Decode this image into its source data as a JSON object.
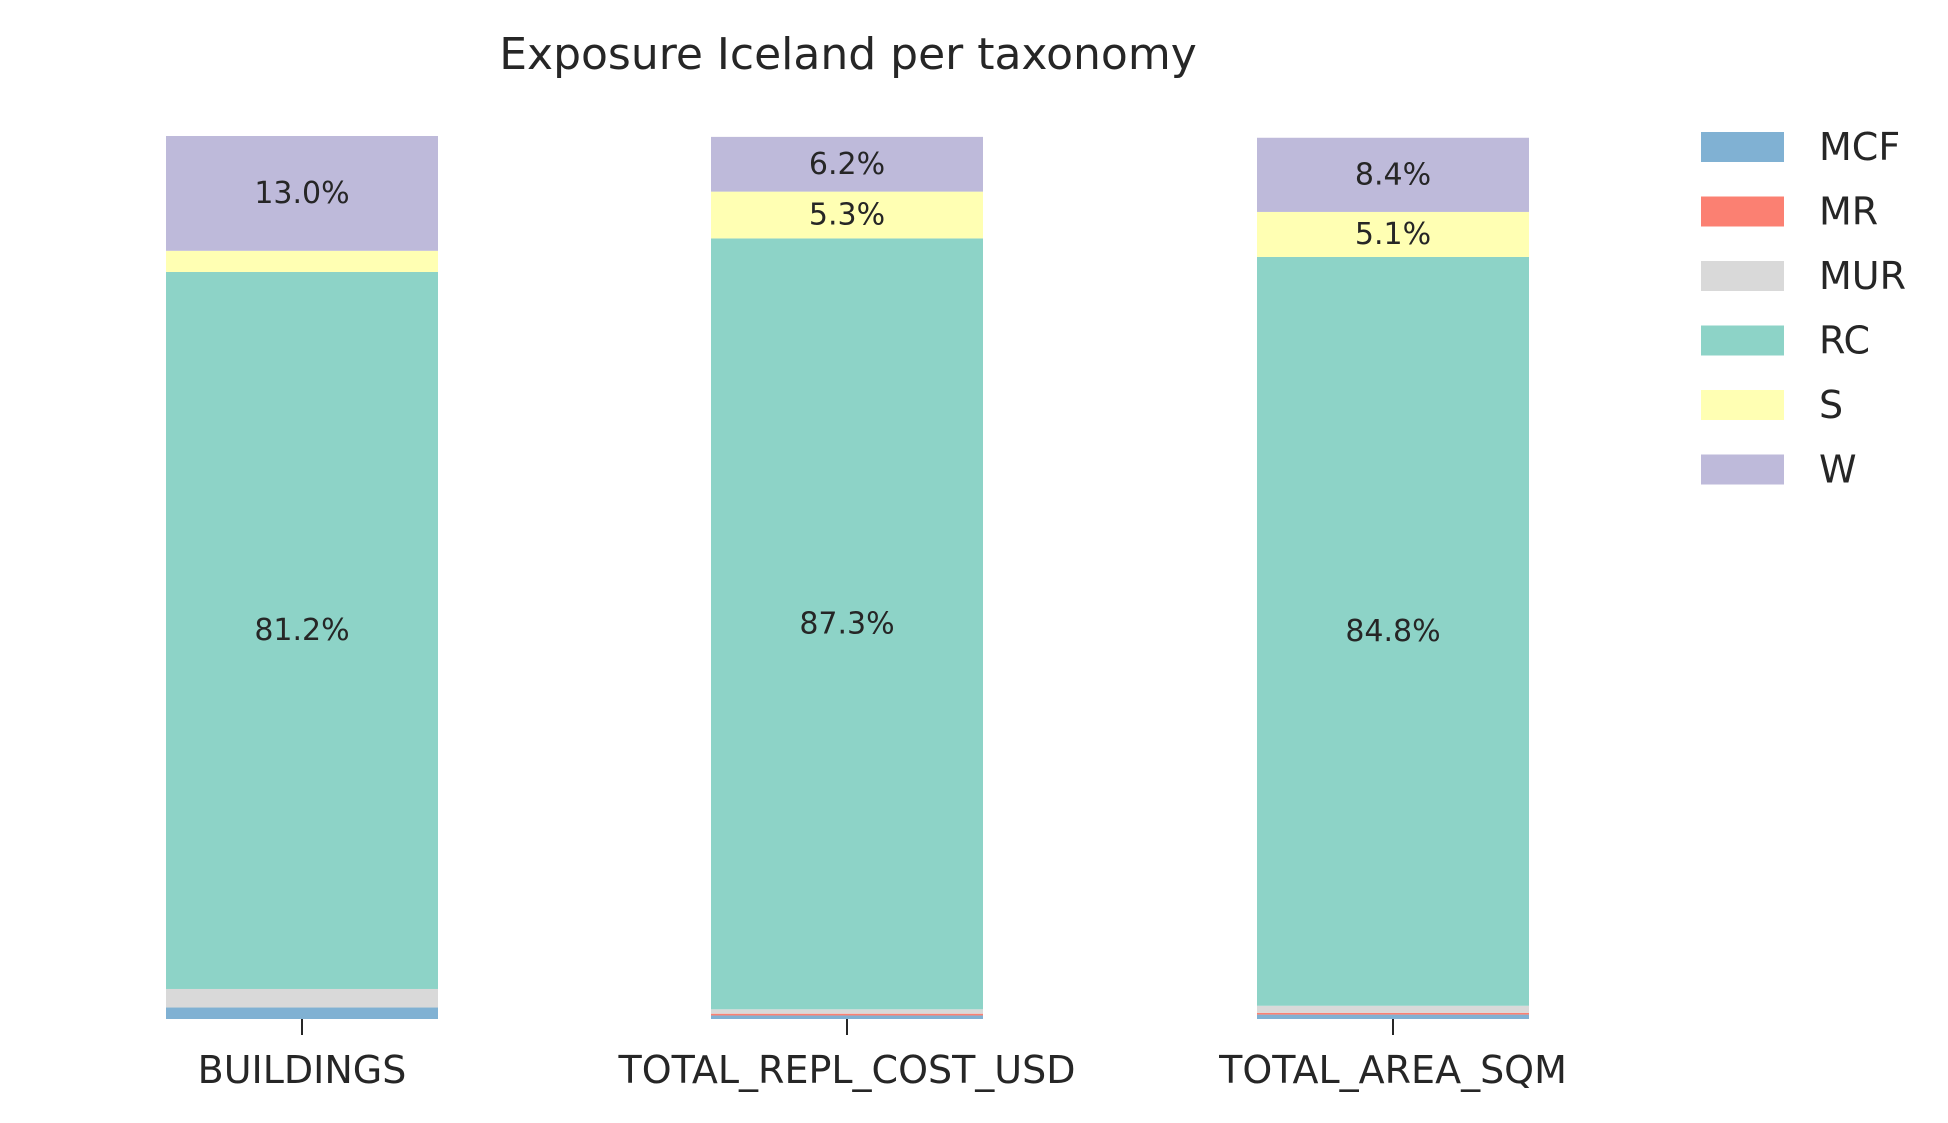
{
  "chart_data": {
    "type": "bar",
    "stacked": true,
    "title": "Exposure Iceland per taxonomy",
    "xlabel": "",
    "ylabel": "",
    "ylim": [
      0,
      1
    ],
    "grid": false,
    "legend_position": "right",
    "categories": [
      "BUILDINGS",
      "TOTAL_REPL_COST_USD",
      "TOTAL_AREA_SQM"
    ],
    "series": [
      {
        "name": "MCF",
        "color": "#80b1d3",
        "values": [
          0.013,
          0.004,
          0.005
        ]
      },
      {
        "name": "MR",
        "color": "#fb8072",
        "values": [
          0.0,
          0.002,
          0.002
        ]
      },
      {
        "name": "MUR",
        "color": "#d9d9d9",
        "values": [
          0.021,
          0.005,
          0.008
        ]
      },
      {
        "name": "RC",
        "color": "#8dd3c7",
        "values": [
          0.812,
          0.873,
          0.848
        ]
      },
      {
        "name": "S",
        "color": "#ffffb3",
        "values": [
          0.024,
          0.053,
          0.051
        ]
      },
      {
        "name": "W",
        "color": "#bebada",
        "values": [
          0.13,
          0.062,
          0.084
        ]
      }
    ],
    "data_labels": [
      {
        "category_index": 0,
        "series_index": 5,
        "text": "13.0%"
      },
      {
        "category_index": 0,
        "series_index": 3,
        "text": "81.2%"
      },
      {
        "category_index": 1,
        "series_index": 5,
        "text": "6.2%"
      },
      {
        "category_index": 1,
        "series_index": 4,
        "text": "5.3%"
      },
      {
        "category_index": 1,
        "series_index": 3,
        "text": "87.3%"
      },
      {
        "category_index": 2,
        "series_index": 5,
        "text": "8.4%"
      },
      {
        "category_index": 2,
        "series_index": 4,
        "text": "5.1%"
      },
      {
        "category_index": 2,
        "series_index": 3,
        "text": "84.8%"
      }
    ]
  }
}
